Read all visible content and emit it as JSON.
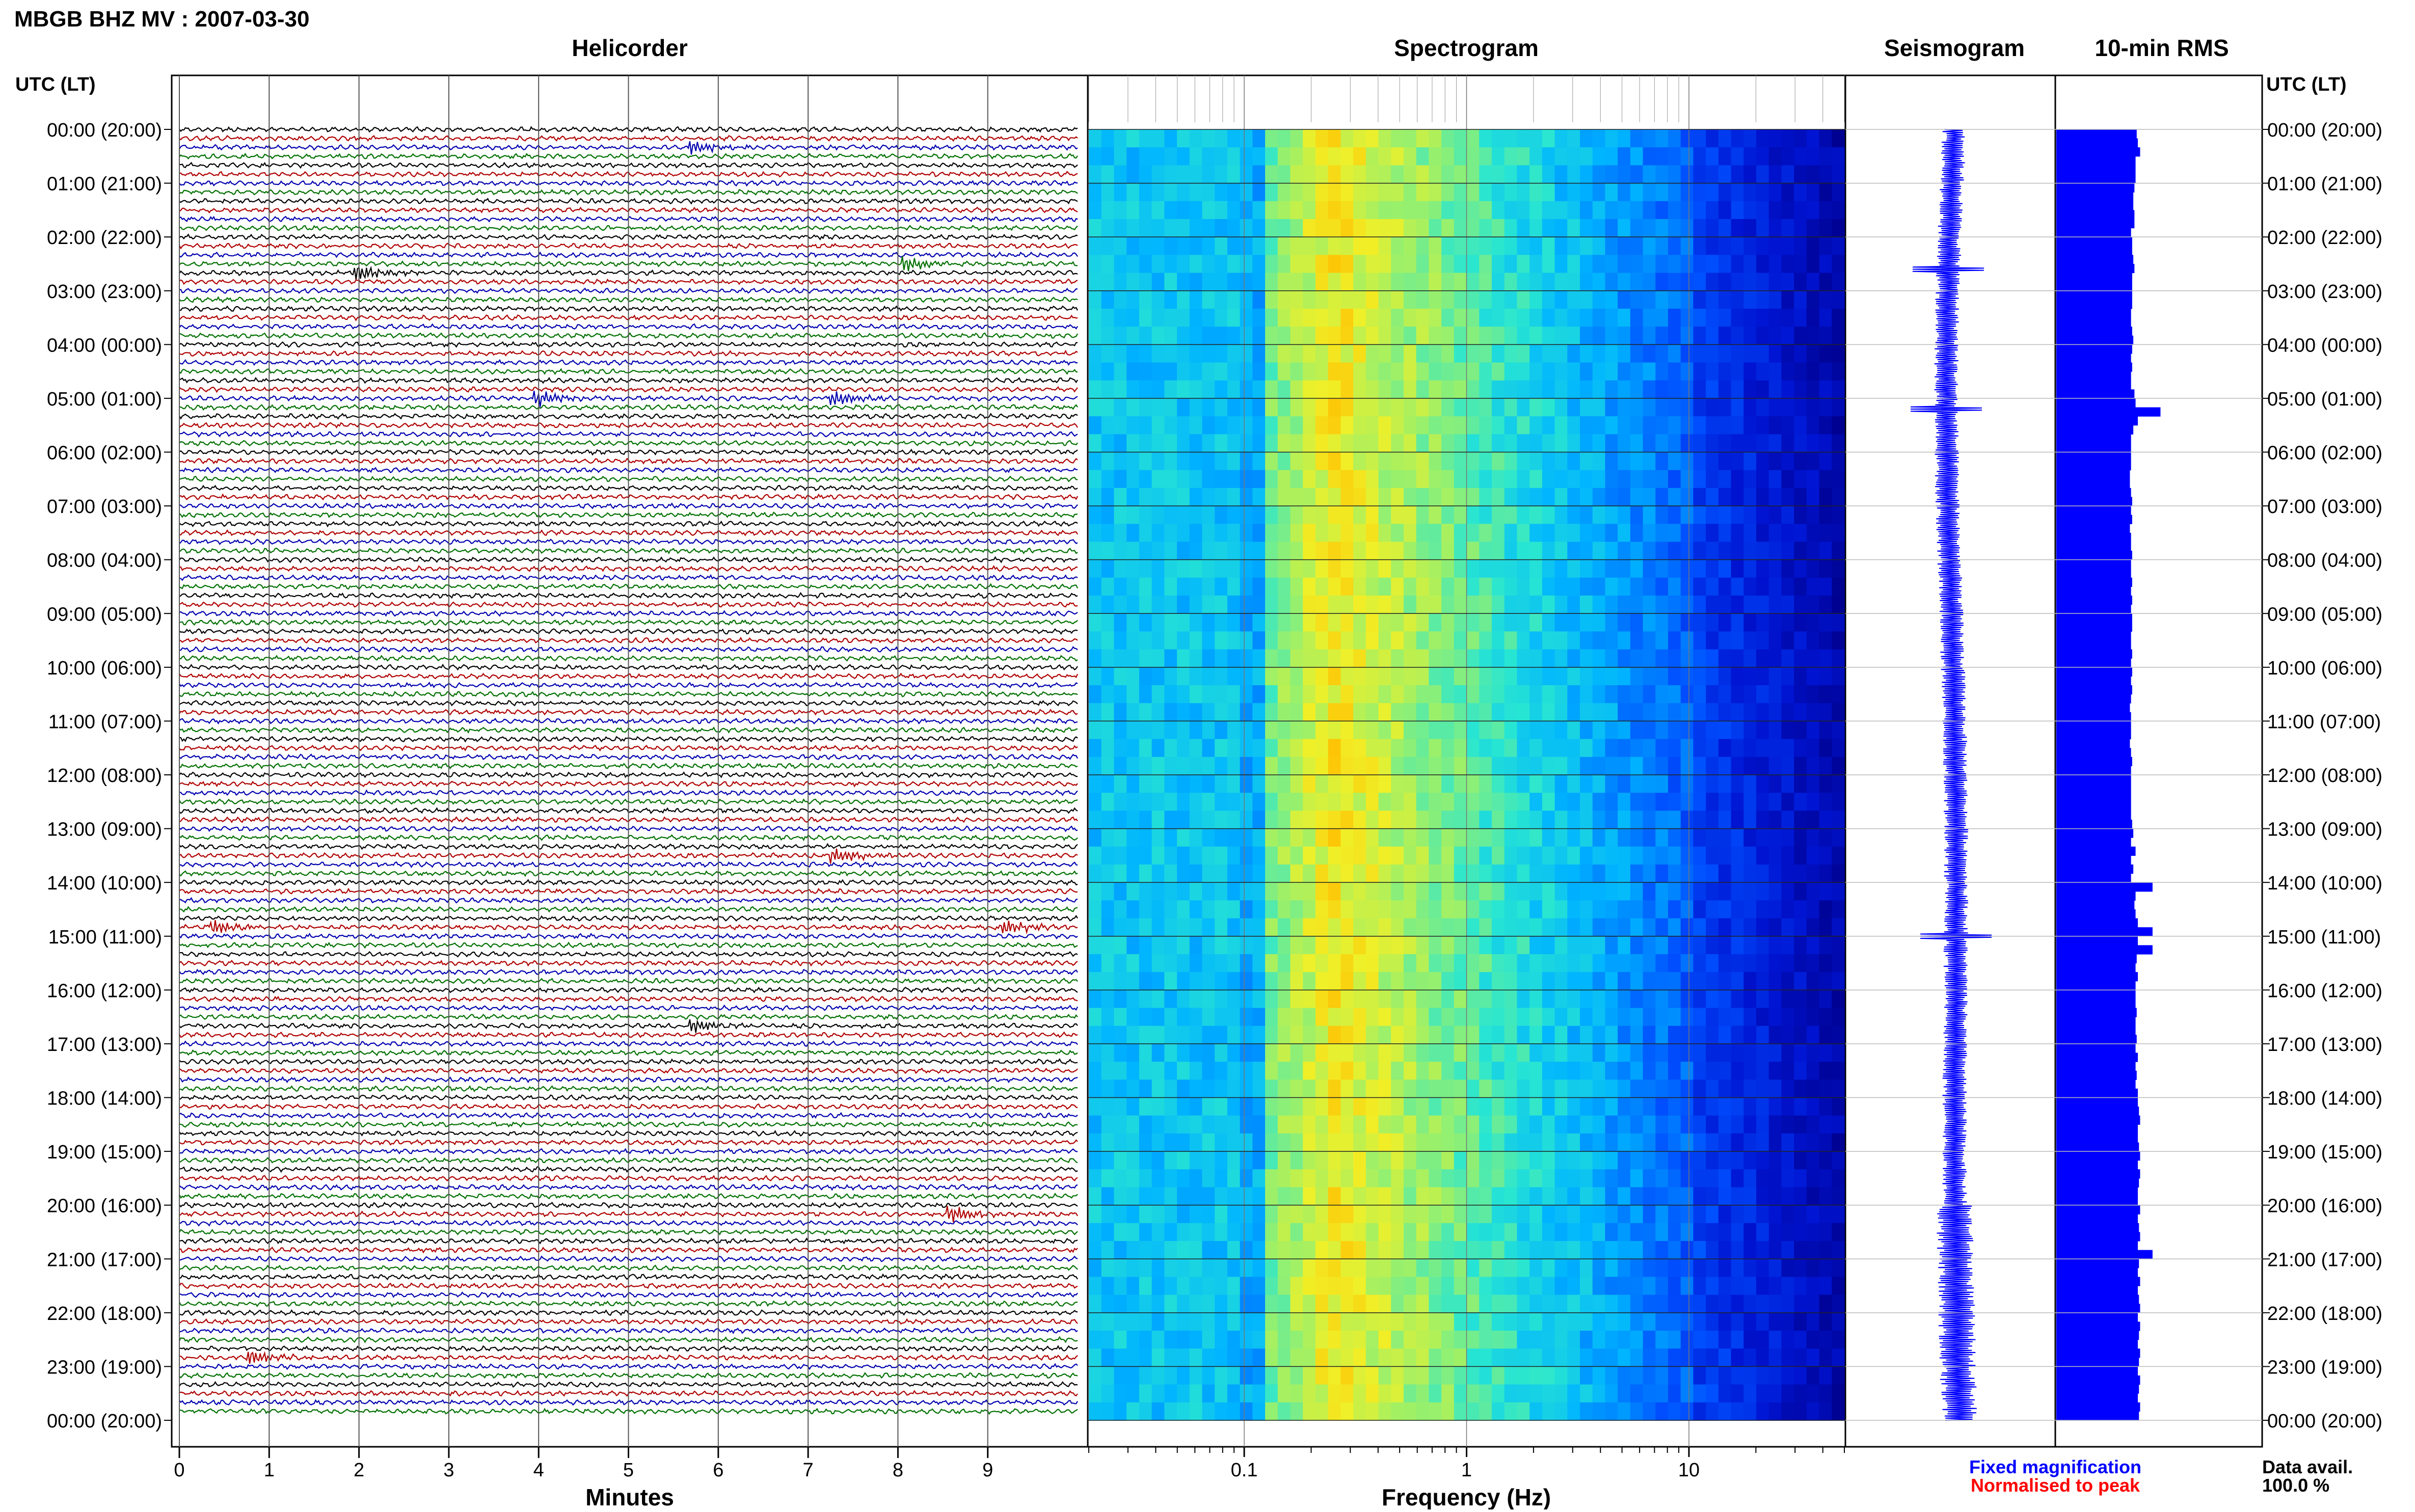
{
  "header": {
    "title": "MBGB BHZ MV : 2007-03-30",
    "utc_lt_label": "UTC (LT)"
  },
  "panels": {
    "helicorder": "Helicorder",
    "spectrogram": "Spectrogram",
    "seismogram": "Seismogram",
    "rms": "10-min RMS"
  },
  "rows": [
    "00:00 (20:00)",
    "01:00 (21:00)",
    "02:00 (22:00)",
    "03:00 (23:00)",
    "04:00 (00:00)",
    "05:00 (01:00)",
    "06:00 (02:00)",
    "07:00 (03:00)",
    "08:00 (04:00)",
    "09:00 (05:00)",
    "10:00 (06:00)",
    "11:00 (07:00)",
    "12:00 (08:00)",
    "13:00 (09:00)",
    "14:00 (10:00)",
    "15:00 (11:00)",
    "16:00 (12:00)",
    "17:00 (13:00)",
    "18:00 (14:00)",
    "19:00 (15:00)",
    "20:00 (16:00)",
    "21:00 (17:00)",
    "22:00 (18:00)",
    "23:00 (19:00)",
    "00:00 (20:00)"
  ],
  "chart_data": [
    {
      "type": "line",
      "panel": "helicorder",
      "title": "Helicorder",
      "xlabel": "Minutes",
      "x_ticks": [
        0,
        1,
        2,
        3,
        4,
        5,
        6,
        7,
        8,
        9
      ],
      "xlim": [
        0,
        10
      ],
      "trace_colors": [
        "#000000",
        "#b00000",
        "#0000b0",
        "#007000"
      ],
      "traces_per_hour": 6,
      "events": [
        {
          "hour": 0.3,
          "minute": 5.7,
          "color": "#007000"
        },
        {
          "hour": 2.5,
          "minute": 8.1,
          "color": "#007000"
        },
        {
          "hour": 2.7,
          "minute": 2.0,
          "color": "#0000b0"
        },
        {
          "hour": 5.0,
          "minute": 4.0,
          "color": "#007000"
        },
        {
          "hour": 5.0,
          "minute": 7.3,
          "color": "#007000"
        },
        {
          "hour": 13.5,
          "minute": 7.3,
          "color": "#b00000"
        },
        {
          "hour": 14.8,
          "minute": 0.4,
          "color": "#007000"
        },
        {
          "hour": 14.8,
          "minute": 9.2,
          "color": "#0000b0"
        },
        {
          "hour": 16.7,
          "minute": 5.7,
          "color": "#000000"
        },
        {
          "hour": 20.2,
          "minute": 8.6,
          "color": "#007000"
        },
        {
          "hour": 22.8,
          "minute": 0.8,
          "color": "#000000"
        }
      ]
    },
    {
      "type": "heatmap",
      "panel": "spectrogram",
      "title": "Spectrogram",
      "xlabel": "Frequency (Hz)",
      "x_scale": "log",
      "xlim": [
        0.02,
        50
      ],
      "x_tick_labels": [
        "0.1",
        "1",
        "10"
      ],
      "x_tick_values": [
        0.1,
        1,
        10
      ],
      "peak_frequency_hz": 0.25
    },
    {
      "type": "line",
      "panel": "seismogram",
      "title": "Seismogram",
      "spikes_hour": [
        2.6,
        5.2,
        15.0
      ]
    },
    {
      "type": "bar",
      "panel": "rms",
      "title": "10-min RMS",
      "orientation": "horizontal",
      "bar_color": "#0000ff",
      "values": [
        0.71,
        0.72,
        0.74,
        0.7,
        0.7,
        0.7,
        0.69,
        0.68,
        0.68,
        0.69,
        0.69,
        0.66,
        0.67,
        0.67,
        0.68,
        0.69,
        0.67,
        0.67,
        0.67,
        0.67,
        0.66,
        0.66,
        0.67,
        0.68,
        0.67,
        0.66,
        0.67,
        0.66,
        0.66,
        0.69,
        0.7,
        0.92,
        0.72,
        0.68,
        0.66,
        0.66,
        0.66,
        0.66,
        0.65,
        0.65,
        0.66,
        0.67,
        0.66,
        0.67,
        0.65,
        0.66,
        0.66,
        0.67,
        0.66,
        0.66,
        0.67,
        0.66,
        0.67,
        0.66,
        0.67,
        0.67,
        0.66,
        0.66,
        0.67,
        0.66,
        0.67,
        0.66,
        0.67,
        0.66,
        0.65,
        0.66,
        0.66,
        0.66,
        0.65,
        0.66,
        0.67,
        0.66,
        0.66,
        0.66,
        0.66,
        0.66,
        0.66,
        0.67,
        0.68,
        0.66,
        0.7,
        0.66,
        0.68,
        0.66,
        0.85,
        0.7,
        0.69,
        0.7,
        0.72,
        0.85,
        0.72,
        0.85,
        0.71,
        0.7,
        0.72,
        0.7,
        0.7,
        0.7,
        0.71,
        0.7,
        0.7,
        0.71,
        0.7,
        0.72,
        0.7,
        0.71,
        0.7,
        0.72,
        0.72,
        0.73,
        0.74,
        0.72,
        0.72,
        0.73,
        0.74,
        0.72,
        0.74,
        0.73,
        0.72,
        0.72,
        0.74,
        0.72,
        0.73,
        0.74,
        0.72,
        0.85,
        0.73,
        0.72,
        0.74,
        0.72,
        0.73,
        0.74,
        0.72,
        0.74,
        0.73,
        0.72,
        0.74,
        0.73,
        0.72,
        0.74,
        0.73,
        0.72,
        0.74,
        0.73
      ]
    }
  ],
  "footer": {
    "legend_fixed": "Fixed magnification",
    "legend_normalised": "Normalised to peak",
    "legend_fixed_color": "#0000ff",
    "legend_normalised_color": "#ff0000",
    "data_avail_label": "Data avail.",
    "data_avail_value": "100.0 %"
  }
}
